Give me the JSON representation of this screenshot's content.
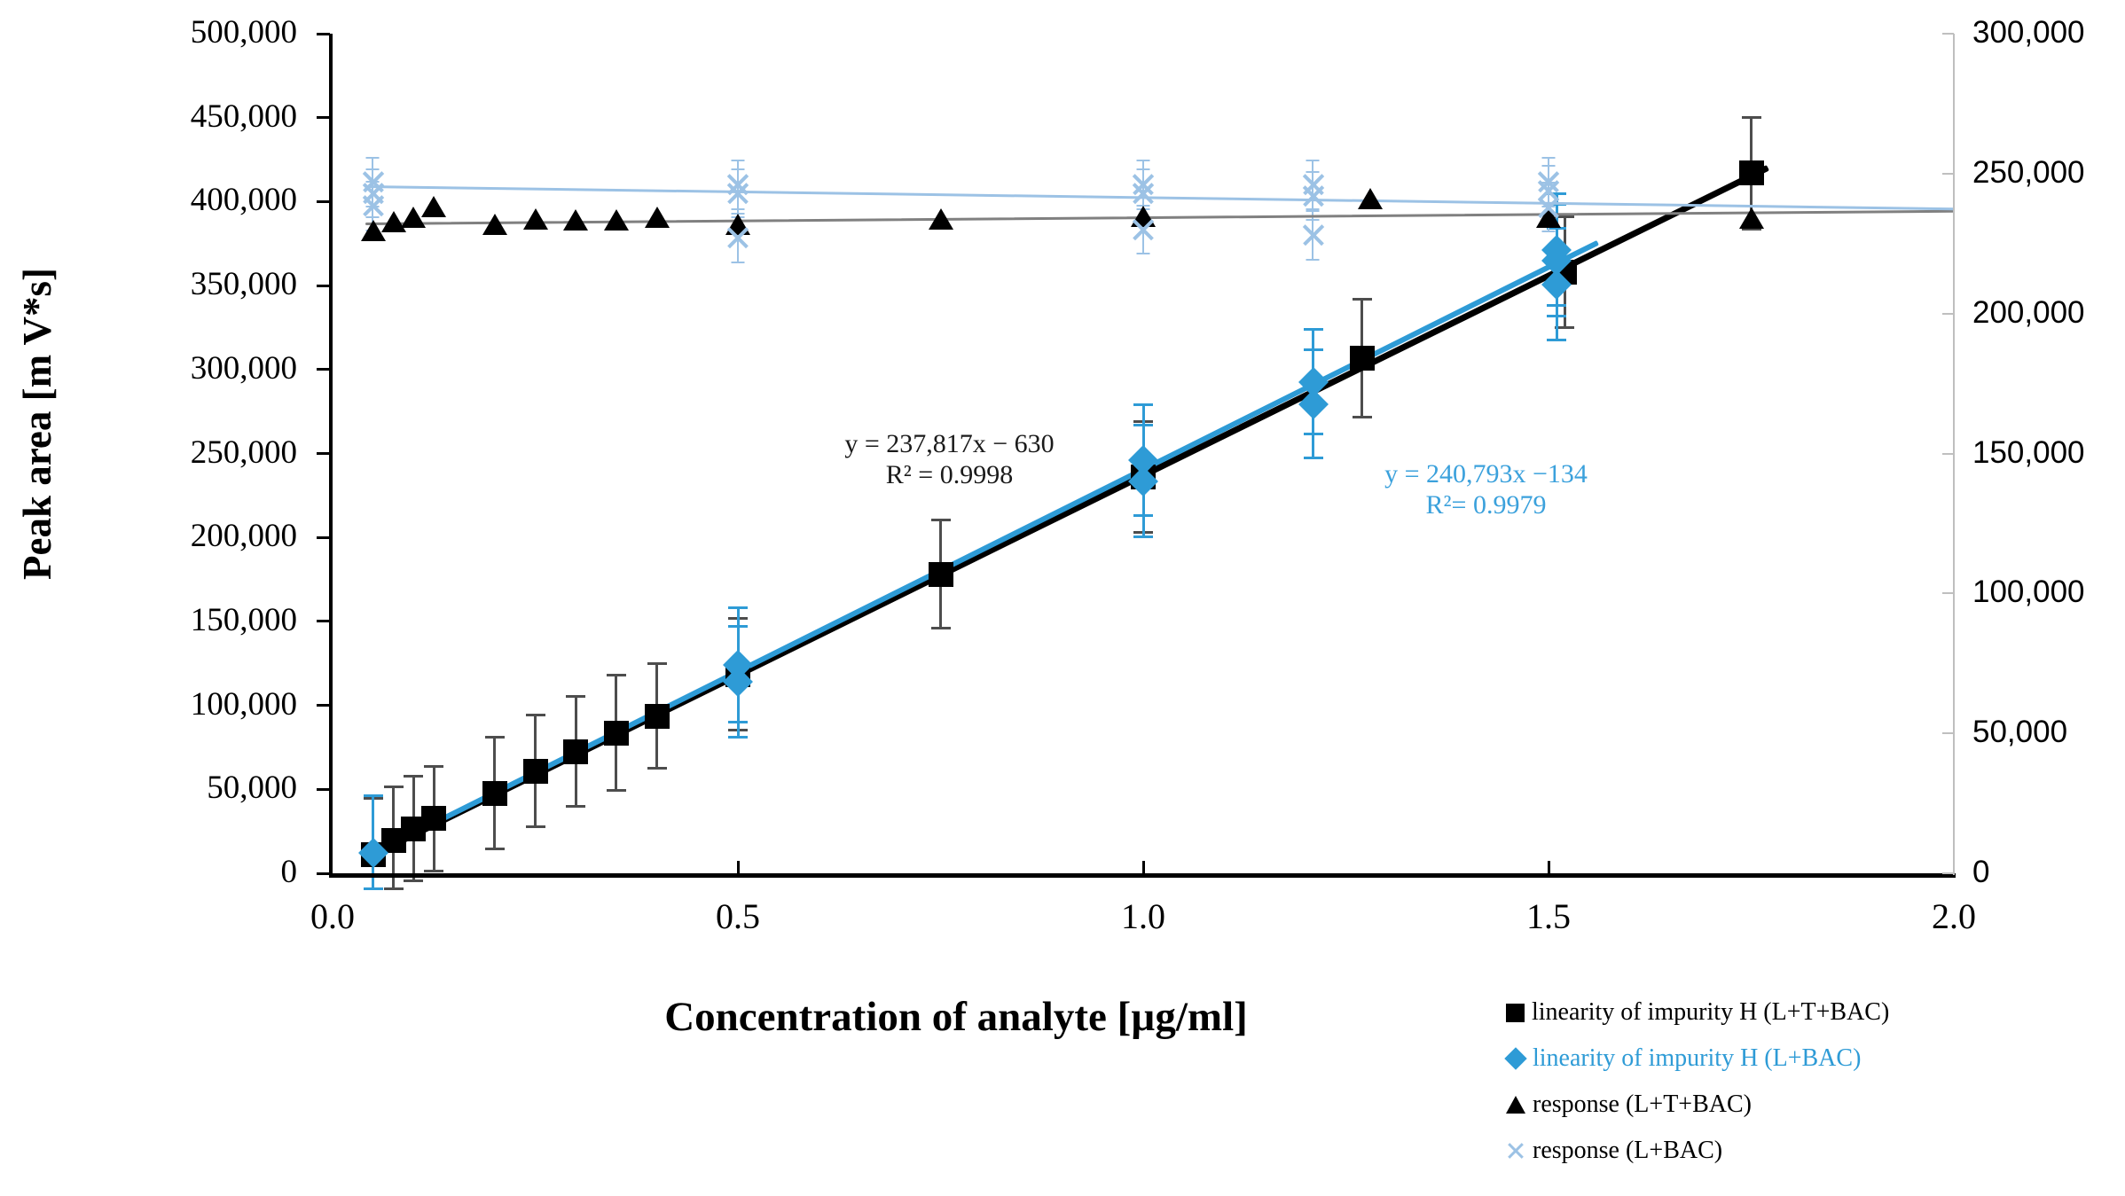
{
  "figure": {
    "y_left_title": "Peak area  [m V*s]",
    "x_title": "Concentration of analyte [µg/ml]"
  },
  "annotations": {
    "black_eq_line1": "y = 237,817x − 630",
    "black_eq_line2": "R² = 0.9998",
    "blue_eq_line1": "y = 240,793x −134",
    "blue_eq_line2": "R²= 0.9979"
  },
  "colors": {
    "series_blue": "#2e9bd6",
    "light_blue": "#9cc2e5",
    "eq_blue": "#3ba1dc",
    "trend_gray": "#808080",
    "axis_gray": "#bfbfbf",
    "errbar_dark": "#4d4d4d"
  },
  "legend": {
    "items": [
      {
        "marker": "square",
        "label": "linearity of impurity H (L+T+BAC)",
        "text_color": "#000000"
      },
      {
        "marker": "diamond",
        "label": "linearity of impurity H (L+BAC)",
        "text_color": "#2e9bd6"
      },
      {
        "marker": "triangle",
        "label": "response (L+T+BAC)",
        "text_color": "#000000"
      },
      {
        "marker": "x",
        "label": "response (L+BAC)",
        "text_color": "#000000"
      }
    ]
  },
  "chart_data": {
    "type": "scatter",
    "x_axis": {
      "min": 0,
      "max": 2,
      "ticks": [
        {
          "v": 0,
          "label": "0.0"
        },
        {
          "v": 0.5,
          "label": "0.5"
        },
        {
          "v": 1.0,
          "label": "1.0"
        },
        {
          "v": 1.5,
          "label": "1.5"
        },
        {
          "v": 2.0,
          "label": "2.0"
        }
      ]
    },
    "y_left": {
      "min": 0,
      "max": 500000,
      "ticks": [
        {
          "v": 0,
          "label": "0"
        },
        {
          "v": 50000,
          "label": "50,000"
        },
        {
          "v": 100000,
          "label": "100,000"
        },
        {
          "v": 150000,
          "label": "150,000"
        },
        {
          "v": 200000,
          "label": "200,000"
        },
        {
          "v": 250000,
          "label": "250,000"
        },
        {
          "v": 300000,
          "label": "300,000"
        },
        {
          "v": 350000,
          "label": "350,000"
        },
        {
          "v": 400000,
          "label": "400,000"
        },
        {
          "v": 450000,
          "label": "450,000"
        },
        {
          "v": 500000,
          "label": "500,000"
        }
      ]
    },
    "y_right": {
      "min": 0,
      "max": 300000,
      "ticks": [
        {
          "v": 0,
          "label": "0"
        },
        {
          "v": 50000,
          "label": "50,000"
        },
        {
          "v": 100000,
          "label": "100,000"
        },
        {
          "v": 150000,
          "label": "150,000"
        },
        {
          "v": 200000,
          "label": "200,000"
        },
        {
          "v": 250000,
          "label": "250,000"
        },
        {
          "v": 300000,
          "label": "300,000"
        }
      ]
    },
    "series": [
      {
        "name": "linearity of impurity H (L+T+BAC)",
        "axis": "left",
        "marker": "square",
        "color": "#000000",
        "err_color": "#4d4d4d",
        "equation": "y = 237,817x − 630",
        "r_squared": "R² = 0.9998",
        "points": [
          {
            "x": 0.05,
            "y": 11300,
            "err": 34000
          },
          {
            "x": 0.075,
            "y": 19500,
            "err": 33000
          },
          {
            "x": 0.1,
            "y": 26500,
            "err": 32000
          },
          {
            "x": 0.125,
            "y": 32500,
            "err": 32000
          },
          {
            "x": 0.2,
            "y": 47600,
            "err": 34000
          },
          {
            "x": 0.25,
            "y": 60800,
            "err": 34000
          },
          {
            "x": 0.3,
            "y": 72500,
            "err": 33500
          },
          {
            "x": 0.35,
            "y": 83600,
            "err": 35000
          },
          {
            "x": 0.4,
            "y": 93700,
            "err": 32000
          },
          {
            "x": 0.5,
            "y": 118500,
            "err": 34000
          },
          {
            "x": 0.75,
            "y": 178000,
            "err": 33000
          },
          {
            "x": 1.0,
            "y": 236000,
            "err": 34000
          },
          {
            "x": 1.27,
            "y": 306900,
            "err": 36000
          },
          {
            "x": 1.52,
            "y": 358000,
            "err": 34000
          },
          {
            "x": 1.75,
            "y": 417000,
            "err": 34000
          }
        ],
        "trend": {
          "x1": 0.04,
          "y1": 8883,
          "x2": 1.77,
          "y2": 420306,
          "width": 7,
          "color": "#000000"
        }
      },
      {
        "name": "linearity of impurity H (L+BAC)",
        "axis": "left",
        "marker": "diamond",
        "color": "#2e9bd6",
        "err_color": "#2e9bd6",
        "equation": "y = 240,793x −134",
        "r_squared": "R²= 0.9979",
        "points": [
          {
            "x": 0.05,
            "y": 12000,
            "err": 35000
          },
          {
            "x": 0.5,
            "y": 124000,
            "err": 35000
          },
          {
            "x": 0.5,
            "y": 114000,
            "err": 34000
          },
          {
            "x": 1.0,
            "y": 246000,
            "err": 34000
          },
          {
            "x": 1.0,
            "y": 233500,
            "err": 34000
          },
          {
            "x": 1.21,
            "y": 292600,
            "err": 32000
          },
          {
            "x": 1.21,
            "y": 279400,
            "err": 33000
          },
          {
            "x": 1.51,
            "y": 371400,
            "err": 34000
          },
          {
            "x": 1.51,
            "y": 365000,
            "err": 34000
          },
          {
            "x": 1.51,
            "y": 350800,
            "err": 34000
          }
        ],
        "trend": {
          "x1": 0.04,
          "y1": 9498,
          "x2": 1.56,
          "y2": 375503,
          "width": 6,
          "color": "#2e9bd6"
        }
      },
      {
        "name": "response (L+T+BAC)",
        "axis": "right",
        "marker": "triangle",
        "color": "#000000",
        "points": [
          {
            "x": 0.05,
            "y": 229500
          },
          {
            "x": 0.075,
            "y": 232500
          },
          {
            "x": 0.1,
            "y": 234000
          },
          {
            "x": 0.125,
            "y": 238000
          },
          {
            "x": 0.2,
            "y": 231500
          },
          {
            "x": 0.25,
            "y": 233500
          },
          {
            "x": 0.3,
            "y": 233000
          },
          {
            "x": 0.35,
            "y": 233000
          },
          {
            "x": 0.4,
            "y": 234000
          },
          {
            "x": 0.5,
            "y": 231700
          },
          {
            "x": 0.75,
            "y": 233600
          },
          {
            "x": 1.0,
            "y": 234500
          },
          {
            "x": 1.28,
            "y": 240700
          },
          {
            "x": 1.5,
            "y": 234000
          },
          {
            "x": 1.75,
            "y": 233800
          }
        ],
        "trend": {
          "x1": 0.04,
          "y1": 232000,
          "x2": 2.0,
          "y2": 236500,
          "width": 3,
          "color": "#808080"
        }
      },
      {
        "name": "response (L+BAC)",
        "axis": "right",
        "marker": "x",
        "color": "#9cc2e5",
        "err_color": "#9cc2e5",
        "points": [
          {
            "x": 0.05,
            "y": 247000,
            "err": 9000
          },
          {
            "x": 0.05,
            "y": 243000,
            "err": 9000
          },
          {
            "x": 0.05,
            "y": 238500,
            "err": 9000
          },
          {
            "x": 0.5,
            "y": 246000,
            "err": 9000
          },
          {
            "x": 0.5,
            "y": 243000,
            "err": 9000
          },
          {
            "x": 0.5,
            "y": 227000,
            "err": 9000
          },
          {
            "x": 1.0,
            "y": 246000,
            "err": 9000
          },
          {
            "x": 1.0,
            "y": 243000,
            "err": 9000
          },
          {
            "x": 1.0,
            "y": 230000,
            "err": 9000
          },
          {
            "x": 1.21,
            "y": 246000,
            "err": 9000
          },
          {
            "x": 1.21,
            "y": 242000,
            "err": 9000
          },
          {
            "x": 1.21,
            "y": 228000,
            "err": 9000
          },
          {
            "x": 1.5,
            "y": 247000,
            "err": 9000
          },
          {
            "x": 1.5,
            "y": 244000,
            "err": 9000
          },
          {
            "x": 1.5,
            "y": 238000,
            "err": 9000
          }
        ],
        "trend": {
          "x1": 0.04,
          "y1": 245500,
          "x2": 2.0,
          "y2": 237500,
          "width": 3,
          "color": "#9cc2e5"
        }
      }
    ]
  }
}
